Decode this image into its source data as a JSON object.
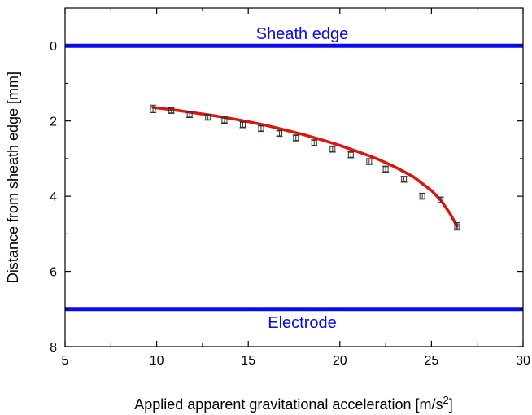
{
  "chart_data": {
    "type": "scatter",
    "title": "",
    "xlabel": "Applied apparent gravitational acceleration [m/s",
    "xlabel_superscript": "2",
    "xlabel_suffix": "]",
    "ylabel": "Distance from sheath edge [mm]",
    "xlim": [
      5,
      30
    ],
    "ylim": [
      8,
      -1
    ],
    "y_inverted": true,
    "x_ticks": [
      5,
      10,
      15,
      20,
      25,
      30
    ],
    "y_ticks": [
      0,
      2,
      4,
      6,
      8
    ],
    "grid": false,
    "legend": "none",
    "series": [
      {
        "type": "scatter-errorbar",
        "marker": "open-square",
        "color": "#000000",
        "x": [
          9.8,
          10.8,
          11.8,
          12.8,
          13.7,
          14.7,
          15.7,
          16.7,
          17.6,
          18.6,
          19.6,
          20.6,
          21.6,
          22.5,
          23.5,
          24.5,
          25.5,
          26.4
        ],
        "y": [
          1.68,
          1.72,
          1.83,
          1.9,
          1.98,
          2.1,
          2.2,
          2.33,
          2.45,
          2.58,
          2.75,
          2.9,
          3.08,
          3.28,
          3.55,
          4.0,
          4.1,
          4.8
        ],
        "yerr": [
          0.1,
          0.08,
          0.08,
          0.08,
          0.08,
          0.08,
          0.08,
          0.08,
          0.08,
          0.08,
          0.08,
          0.08,
          0.08,
          0.08,
          0.08,
          0.08,
          0.08,
          0.1
        ]
      },
      {
        "type": "line",
        "color": "#e0140a",
        "x": [
          9.8,
          11,
          12,
          13,
          14,
          15,
          16,
          17,
          18,
          19,
          20,
          21,
          22,
          23,
          24,
          25,
          25.5,
          26,
          26.4
        ],
        "y": [
          1.64,
          1.71,
          1.78,
          1.85,
          1.93,
          2.02,
          2.12,
          2.24,
          2.36,
          2.5,
          2.65,
          2.82,
          3.0,
          3.22,
          3.48,
          3.85,
          4.1,
          4.45,
          4.8
        ]
      }
    ],
    "reference_lines": [
      {
        "y": 0,
        "label": "Sheath edge",
        "color": "#0a0af0"
      },
      {
        "y": 7,
        "label": "Electrode",
        "color": "#0a0af0"
      }
    ]
  }
}
